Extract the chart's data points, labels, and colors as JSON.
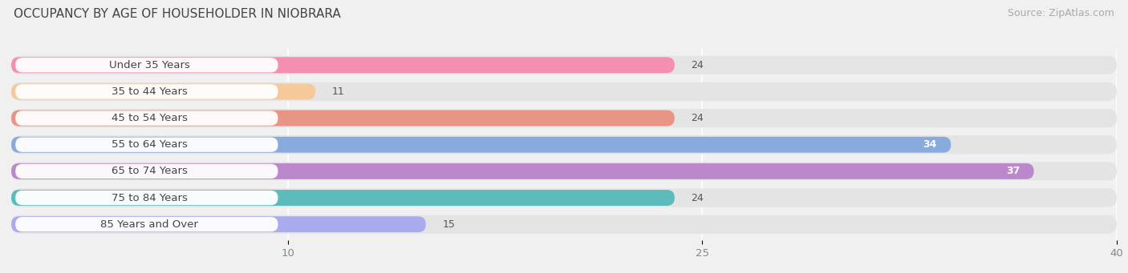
{
  "title": "OCCUPANCY BY AGE OF HOUSEHOLDER IN NIOBRARA",
  "source": "Source: ZipAtlas.com",
  "categories": [
    "Under 35 Years",
    "35 to 44 Years",
    "45 to 54 Years",
    "55 to 64 Years",
    "65 to 74 Years",
    "75 to 84 Years",
    "85 Years and Over"
  ],
  "values": [
    24,
    11,
    24,
    34,
    37,
    24,
    15
  ],
  "bar_colors": [
    "#f48fb1",
    "#f5c99a",
    "#e89585",
    "#88aadd",
    "#bb88cc",
    "#5bbcbb",
    "#aaaaee"
  ],
  "xlim": [
    0,
    40
  ],
  "xticks": [
    10,
    25,
    40
  ],
  "title_fontsize": 11,
  "source_fontsize": 9,
  "label_fontsize": 9.5,
  "value_fontsize": 9,
  "background_color": "#f0f0f0",
  "bar_background_color": "#e4e4e4",
  "label_pill_color": "#ffffff"
}
